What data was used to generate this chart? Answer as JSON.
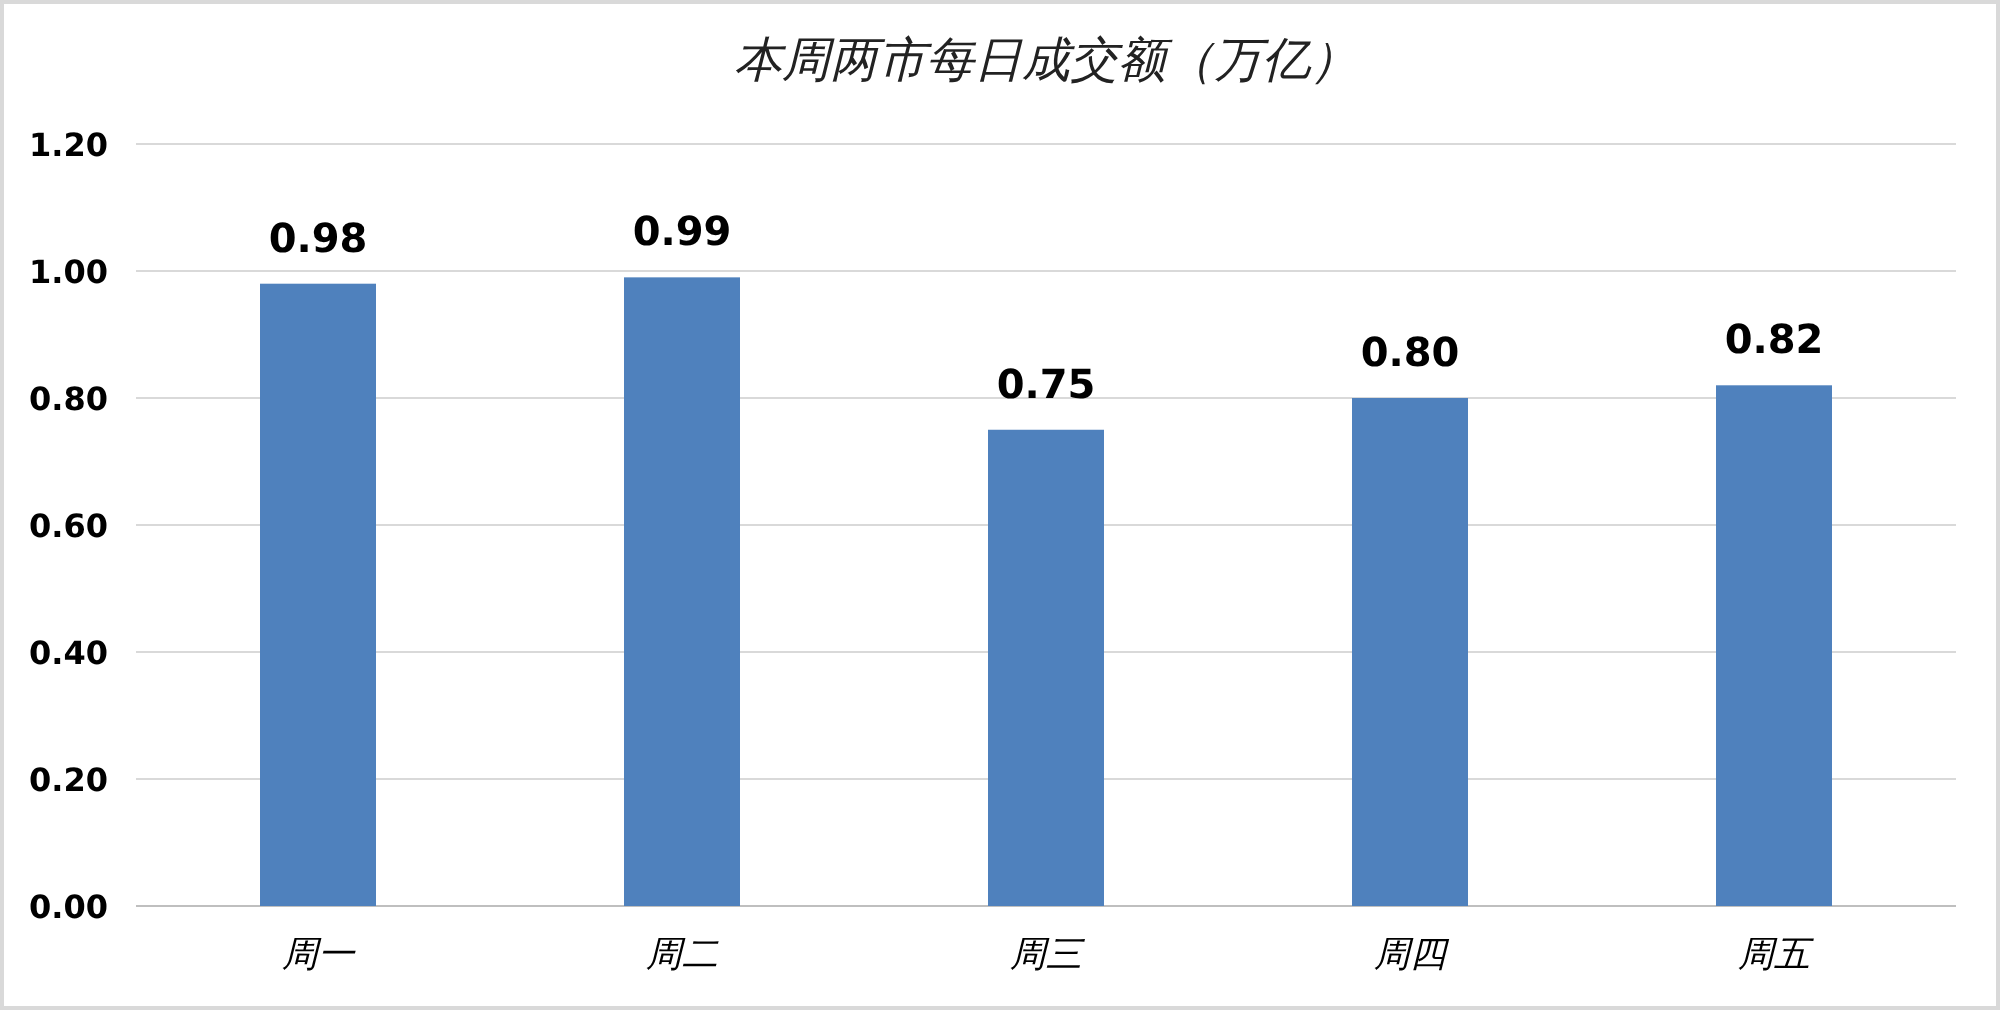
{
  "chart_data": {
    "type": "bar",
    "title": "本周两市每日成交额（万亿）",
    "categories": [
      "周一",
      "周二",
      "周三",
      "周四",
      "周五"
    ],
    "values": [
      0.98,
      0.99,
      0.75,
      0.8,
      0.82
    ],
    "value_labels": [
      "0.98",
      "0.99",
      "0.75",
      "0.80",
      "0.82"
    ],
    "color": "#4f81bd",
    "ylim": [
      0,
      1.2
    ],
    "yticks": [
      {
        "value": 0,
        "label": "0.00"
      },
      {
        "value": 0.2,
        "label": "0.20"
      },
      {
        "value": 0.4,
        "label": "0.40"
      },
      {
        "value": 0.6,
        "label": "0.60"
      },
      {
        "value": 0.8,
        "label": "0.80"
      },
      {
        "value": 1.0,
        "label": "1.00"
      },
      {
        "value": 1.2,
        "label": "1.20"
      }
    ],
    "grid": "y"
  }
}
